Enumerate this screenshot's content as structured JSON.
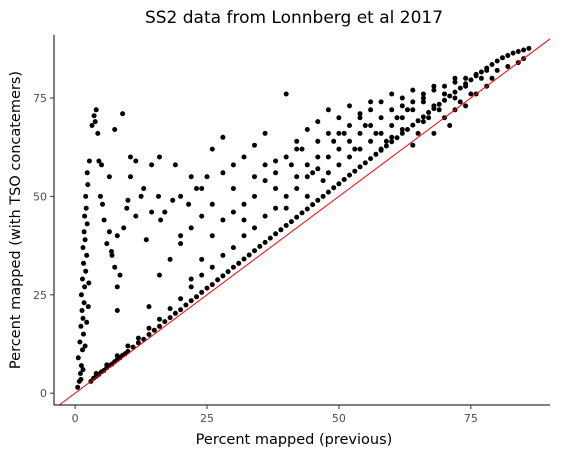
{
  "chart_data": {
    "type": "scatter",
    "title": "SS2 data from Lonnberg et al 2017",
    "xlabel": "Percent mapped (previous)",
    "ylabel": "Percent mapped (with TSO concatemers)",
    "xlim": [
      -4,
      90
    ],
    "ylim": [
      -3,
      91
    ],
    "xticks": [
      0,
      25,
      50,
      75
    ],
    "yticks": [
      0,
      25,
      50,
      75
    ],
    "grid": false,
    "reference_line": {
      "slope": 1,
      "intercept": 0,
      "color": "#ff0000"
    },
    "point_color": "#000000",
    "series": [
      {
        "points": [
          [
            0.5,
            1.5
          ],
          [
            0.8,
            3
          ],
          [
            1.0,
            5
          ],
          [
            1.2,
            7
          ],
          [
            0.6,
            9
          ],
          [
            1.4,
            11
          ],
          [
            0.9,
            13
          ],
          [
            1.6,
            15
          ],
          [
            1.1,
            17
          ],
          [
            1.5,
            19
          ],
          [
            1.3,
            21
          ],
          [
            1.7,
            23
          ],
          [
            1.2,
            25
          ],
          [
            1.8,
            27
          ],
          [
            1.4,
            29
          ],
          [
            2.0,
            31
          ],
          [
            1.6,
            33
          ],
          [
            2.2,
            35
          ],
          [
            1.5,
            37
          ],
          [
            1.9,
            39
          ],
          [
            1.7,
            41
          ],
          [
            2.3,
            43
          ],
          [
            1.8,
            45
          ],
          [
            2.1,
            47
          ],
          [
            2.0,
            50
          ],
          [
            2.4,
            53
          ],
          [
            2.3,
            56
          ],
          [
            2.7,
            59
          ],
          [
            1.5,
            6
          ],
          [
            1.9,
            12
          ],
          [
            2.2,
            18
          ],
          [
            1.1,
            3.5
          ],
          [
            2.5,
            22
          ],
          [
            2.6,
            28
          ],
          [
            3.2,
            68
          ],
          [
            3.6,
            70.5
          ],
          [
            3.8,
            69
          ],
          [
            4.0,
            72
          ],
          [
            4.3,
            66
          ],
          [
            4.5,
            59
          ],
          [
            4.8,
            50
          ],
          [
            5.2,
            48
          ],
          [
            5.5,
            44
          ],
          [
            6.0,
            38
          ],
          [
            6.5,
            41
          ],
          [
            6.9,
            36
          ],
          [
            7.5,
            32
          ],
          [
            8.0,
            27
          ],
          [
            8.5,
            30
          ],
          [
            8.0,
            21
          ],
          [
            7.0,
            35
          ],
          [
            9.2,
            42
          ],
          [
            9.8,
            47
          ],
          [
            10.5,
            55
          ],
          [
            11.5,
            45
          ],
          [
            12.5,
            50
          ],
          [
            13.5,
            39
          ],
          [
            14.5,
            46
          ],
          [
            15.8,
            50
          ],
          [
            16.2,
            44
          ],
          [
            17.0,
            46
          ],
          [
            18.5,
            49
          ],
          [
            7.5,
            67
          ],
          [
            9.0,
            71
          ],
          [
            10.5,
            60
          ],
          [
            11.5,
            59
          ],
          [
            13.0,
            52
          ],
          [
            14.5,
            58
          ],
          [
            16.0,
            60
          ],
          [
            19.0,
            58
          ],
          [
            20.0,
            40
          ],
          [
            21.5,
            48
          ],
          [
            22.0,
            55
          ],
          [
            23.0,
            52
          ],
          [
            25.0,
            55
          ],
          [
            24.0,
            45
          ],
          [
            5.0,
            58
          ],
          [
            6.5,
            55
          ],
          [
            8.0,
            40
          ],
          [
            10.0,
            49
          ],
          [
            3,
            3
          ],
          [
            3.5,
            3.8
          ],
          [
            4,
            4.3
          ],
          [
            4.5,
            4.8
          ],
          [
            5,
            5.4
          ],
          [
            5.5,
            5.8
          ],
          [
            6,
            6.5
          ],
          [
            6.5,
            7
          ],
          [
            7,
            7.4
          ],
          [
            7.5,
            8
          ],
          [
            8,
            8.5
          ],
          [
            8.5,
            9
          ],
          [
            9,
            9.6
          ],
          [
            9.5,
            10
          ],
          [
            10,
            10.6
          ],
          [
            11,
            11.7
          ],
          [
            12,
            12.8
          ],
          [
            13,
            13.7
          ],
          [
            14,
            14.9
          ],
          [
            15,
            16
          ],
          [
            16,
            17
          ],
          [
            17,
            18.2
          ],
          [
            18,
            19.2
          ],
          [
            19,
            20.3
          ],
          [
            20,
            21.2
          ],
          [
            21,
            22.4
          ],
          [
            22,
            23.5
          ],
          [
            23,
            24.5
          ],
          [
            24,
            25.6
          ],
          [
            25,
            26.7
          ],
          [
            26,
            27.6
          ],
          [
            27,
            28.8
          ],
          [
            28,
            29.8
          ],
          [
            29,
            30.9
          ],
          [
            30,
            32
          ],
          [
            31,
            33
          ],
          [
            32,
            34.1
          ],
          [
            33,
            35.1
          ],
          [
            34,
            36.2
          ],
          [
            35,
            37.3
          ],
          [
            36,
            38.3
          ],
          [
            37,
            39.4
          ],
          [
            38,
            40.5
          ],
          [
            39,
            41.5
          ],
          [
            40,
            42.6
          ],
          [
            41,
            43.6
          ],
          [
            42,
            44.7
          ],
          [
            43,
            45.8
          ],
          [
            44,
            46.8
          ],
          [
            45,
            47.9
          ],
          [
            46,
            49
          ],
          [
            47,
            50
          ],
          [
            48,
            51.1
          ],
          [
            49,
            52.2
          ],
          [
            50,
            53.2
          ],
          [
            51,
            54.3
          ],
          [
            52,
            55.4
          ],
          [
            53,
            56.4
          ],
          [
            54,
            57.5
          ],
          [
            55,
            58.5
          ],
          [
            56,
            59.6
          ],
          [
            57,
            60.7
          ],
          [
            58,
            61.7
          ],
          [
            59,
            62.8
          ],
          [
            60,
            63.9
          ],
          [
            61,
            64.9
          ],
          [
            62,
            66
          ],
          [
            63,
            67
          ],
          [
            64,
            68.1
          ],
          [
            65,
            69.2
          ],
          [
            66,
            70.2
          ],
          [
            67,
            71.3
          ],
          [
            68,
            72.3
          ],
          [
            69,
            73.4
          ],
          [
            70,
            74.4
          ],
          [
            71,
            75.5
          ],
          [
            72,
            76.5
          ],
          [
            73,
            77.5
          ],
          [
            74,
            78.6
          ],
          [
            75,
            79.6
          ],
          [
            76,
            80.6
          ],
          [
            77,
            81.6
          ],
          [
            78,
            82.6
          ],
          [
            79,
            83.5
          ],
          [
            80,
            84.4
          ],
          [
            81,
            85.2
          ],
          [
            82,
            85.8
          ],
          [
            83,
            86.4
          ],
          [
            84,
            86.8
          ],
          [
            85,
            87.2
          ],
          [
            86,
            87.6
          ],
          [
            4,
            5
          ],
          [
            6,
            7.2
          ],
          [
            8,
            9.5
          ],
          [
            10,
            12
          ],
          [
            12,
            14
          ],
          [
            14,
            16.5
          ],
          [
            16,
            18.8
          ],
          [
            18,
            21.5
          ],
          [
            20,
            24
          ],
          [
            22,
            27
          ],
          [
            24,
            30
          ],
          [
            26,
            32
          ],
          [
            28,
            35
          ],
          [
            30,
            37
          ],
          [
            32,
            40
          ],
          [
            34,
            42
          ],
          [
            36,
            45
          ],
          [
            38,
            47
          ],
          [
            40,
            50
          ],
          [
            42,
            52
          ],
          [
            44,
            55
          ],
          [
            46,
            57
          ],
          [
            48,
            60
          ],
          [
            50,
            62
          ],
          [
            52,
            64
          ],
          [
            54,
            66
          ],
          [
            56,
            68
          ],
          [
            58,
            70
          ],
          [
            60,
            72
          ],
          [
            62,
            73
          ],
          [
            64,
            74
          ],
          [
            66,
            76
          ],
          [
            68,
            77
          ],
          [
            70,
            78
          ],
          [
            72,
            79
          ],
          [
            74,
            80
          ],
          [
            76,
            81
          ],
          [
            78,
            82
          ],
          [
            14,
            22
          ],
          [
            16,
            30
          ],
          [
            18,
            34
          ],
          [
            20,
            38
          ],
          [
            22,
            29
          ],
          [
            24,
            34
          ],
          [
            26,
            40
          ],
          [
            28,
            44
          ],
          [
            30,
            46
          ],
          [
            32,
            44
          ],
          [
            34,
            50
          ],
          [
            36,
            54
          ],
          [
            38,
            56
          ],
          [
            40,
            60
          ],
          [
            42,
            62
          ],
          [
            44,
            58
          ],
          [
            46,
            64
          ],
          [
            48,
            66
          ],
          [
            50,
            66
          ],
          [
            52,
            68
          ],
          [
            54,
            70
          ],
          [
            56,
            72
          ],
          [
            58,
            74
          ],
          [
            60,
            76
          ],
          [
            62,
            75
          ],
          [
            64,
            77
          ],
          [
            66,
            74
          ],
          [
            68,
            78
          ],
          [
            70,
            76
          ],
          [
            72,
            80
          ],
          [
            26,
            62
          ],
          [
            28,
            65
          ],
          [
            30,
            58
          ],
          [
            32,
            60
          ],
          [
            34,
            63
          ],
          [
            36,
            66
          ],
          [
            38,
            59
          ],
          [
            40,
            76
          ],
          [
            42,
            64
          ],
          [
            44,
            67
          ],
          [
            46,
            69
          ],
          [
            48,
            72
          ],
          [
            50,
            70
          ],
          [
            52,
            73
          ],
          [
            54,
            71
          ],
          [
            56,
            74
          ],
          [
            58,
            66
          ],
          [
            60,
            68
          ],
          [
            62,
            70
          ],
          [
            64,
            72
          ],
          [
            66,
            75
          ],
          [
            68,
            73
          ],
          [
            70,
            76
          ],
          [
            72,
            75
          ],
          [
            74,
            78
          ],
          [
            20,
            50
          ],
          [
            22,
            42
          ],
          [
            24,
            52
          ],
          [
            26,
            48
          ],
          [
            28,
            56
          ],
          [
            30,
            52
          ],
          [
            32,
            48
          ],
          [
            34,
            55
          ],
          [
            36,
            58
          ],
          [
            38,
            52
          ],
          [
            40,
            47
          ],
          [
            42,
            55
          ],
          [
            44,
            50
          ],
          [
            46,
            60
          ],
          [
            48,
            56
          ],
          [
            50,
            58
          ],
          [
            52,
            60
          ],
          [
            54,
            62
          ],
          [
            56,
            64
          ],
          [
            58,
            62
          ],
          [
            60,
            65
          ],
          [
            62,
            67
          ],
          [
            64,
            63
          ],
          [
            66,
            69
          ],
          [
            68,
            66
          ],
          [
            70,
            70
          ],
          [
            72,
            72
          ],
          [
            74,
            73
          ],
          [
            76,
            76
          ],
          [
            78,
            78
          ],
          [
            41,
            58
          ],
          [
            43,
            62
          ],
          [
            45,
            56
          ],
          [
            47,
            54
          ],
          [
            49,
            64
          ],
          [
            51,
            66
          ],
          [
            53,
            62
          ],
          [
            55,
            68
          ],
          [
            57,
            66
          ],
          [
            59,
            64
          ],
          [
            61,
            70
          ],
          [
            63,
            72
          ],
          [
            65,
            66
          ],
          [
            67,
            70
          ],
          [
            69,
            72
          ],
          [
            71,
            68
          ],
          [
            73,
            74
          ],
          [
            75,
            76
          ],
          [
            77,
            80
          ],
          [
            79,
            80
          ],
          [
            80,
            82
          ],
          [
            82,
            83
          ],
          [
            84,
            84
          ],
          [
            85,
            85
          ]
        ]
      }
    ]
  }
}
